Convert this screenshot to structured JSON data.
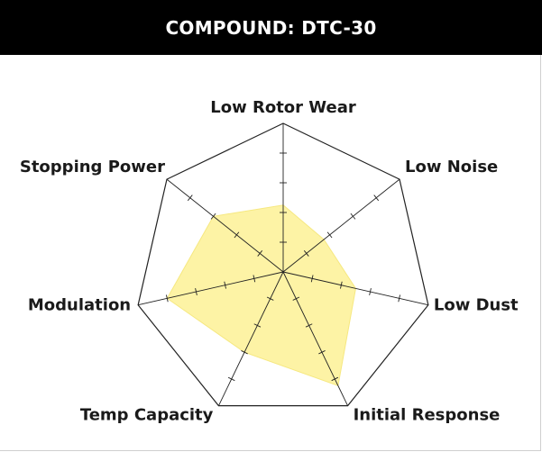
{
  "header": {
    "title": "COMPOUND: DTC-30"
  },
  "chart_data": {
    "type": "radar",
    "axes": [
      "Low Rotor Wear",
      "Low Noise",
      "Low Dust",
      "Initial Response",
      "Temp Capacity",
      "Modulation",
      "Stopping Power"
    ],
    "values": [
      4.5,
      3.5,
      5.0,
      8.5,
      6.0,
      8.0,
      6.0
    ],
    "scale_max": 10,
    "ticks_per_axis": 4,
    "fill_color": "#fdf3a5",
    "fill_stroke": "#f6e880",
    "line_color": "#222222"
  }
}
